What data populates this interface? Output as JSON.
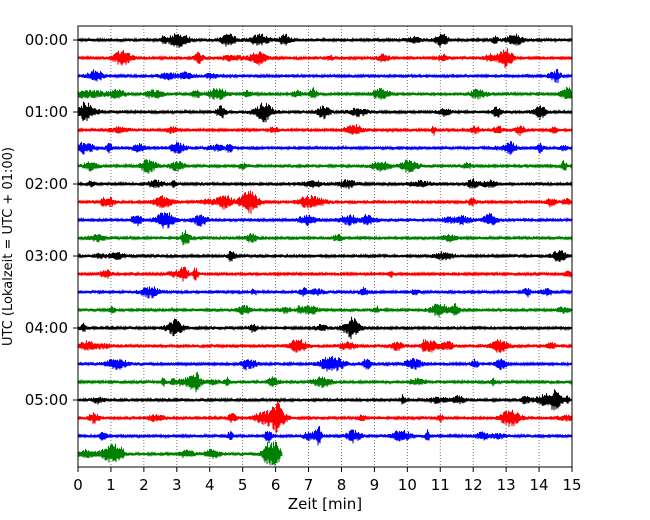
{
  "chart_data": {
    "type": "line",
    "subtype": "helicorder",
    "xlabel": "Zeit  [min]",
    "ylabel": "UTC (Lokalzeit = UTC + 01:00)",
    "xlim": [
      0,
      15
    ],
    "xticks": [
      0,
      1,
      2,
      3,
      4,
      5,
      6,
      7,
      8,
      9,
      10,
      11,
      12,
      13,
      14,
      15
    ],
    "vertical_grid": true,
    "yticks": [
      "00:00",
      "01:00",
      "02:00",
      "03:00",
      "04:00",
      "05:00"
    ],
    "colors": [
      "#000000",
      "#ff0000",
      "#0000ff",
      "#008000"
    ],
    "rows": [
      {
        "start": "00:00",
        "end_min": 15,
        "color": "#000000"
      },
      {
        "start": "00:15",
        "end_min": 15,
        "color": "#ff0000"
      },
      {
        "start": "00:30",
        "end_min": 15,
        "color": "#0000ff"
      },
      {
        "start": "00:45",
        "end_min": 15,
        "color": "#008000"
      },
      {
        "start": "01:00",
        "end_min": 15,
        "color": "#000000"
      },
      {
        "start": "01:15",
        "end_min": 15,
        "color": "#ff0000"
      },
      {
        "start": "01:30",
        "end_min": 15,
        "color": "#0000ff"
      },
      {
        "start": "01:45",
        "end_min": 15,
        "color": "#008000"
      },
      {
        "start": "02:00",
        "end_min": 15,
        "color": "#000000"
      },
      {
        "start": "02:15",
        "end_min": 15,
        "color": "#ff0000"
      },
      {
        "start": "02:30",
        "end_min": 15,
        "color": "#0000ff"
      },
      {
        "start": "02:45",
        "end_min": 15,
        "color": "#008000"
      },
      {
        "start": "03:00",
        "end_min": 15,
        "color": "#000000"
      },
      {
        "start": "03:15",
        "end_min": 15,
        "color": "#ff0000"
      },
      {
        "start": "03:30",
        "end_min": 15,
        "color": "#0000ff"
      },
      {
        "start": "03:45",
        "end_min": 15,
        "color": "#008000"
      },
      {
        "start": "04:00",
        "end_min": 15,
        "color": "#000000"
      },
      {
        "start": "04:15",
        "end_min": 15,
        "color": "#ff0000"
      },
      {
        "start": "04:30",
        "end_min": 15,
        "color": "#0000ff"
      },
      {
        "start": "04:45",
        "end_min": 15,
        "color": "#008000"
      },
      {
        "start": "05:00",
        "end_min": 15,
        "color": "#000000"
      },
      {
        "start": "05:15",
        "end_min": 15,
        "color": "#ff0000"
      },
      {
        "start": "05:30",
        "end_min": 15,
        "color": "#0000ff"
      },
      {
        "start": "05:45",
        "end_min": 6.2,
        "color": "#008000"
      }
    ]
  }
}
